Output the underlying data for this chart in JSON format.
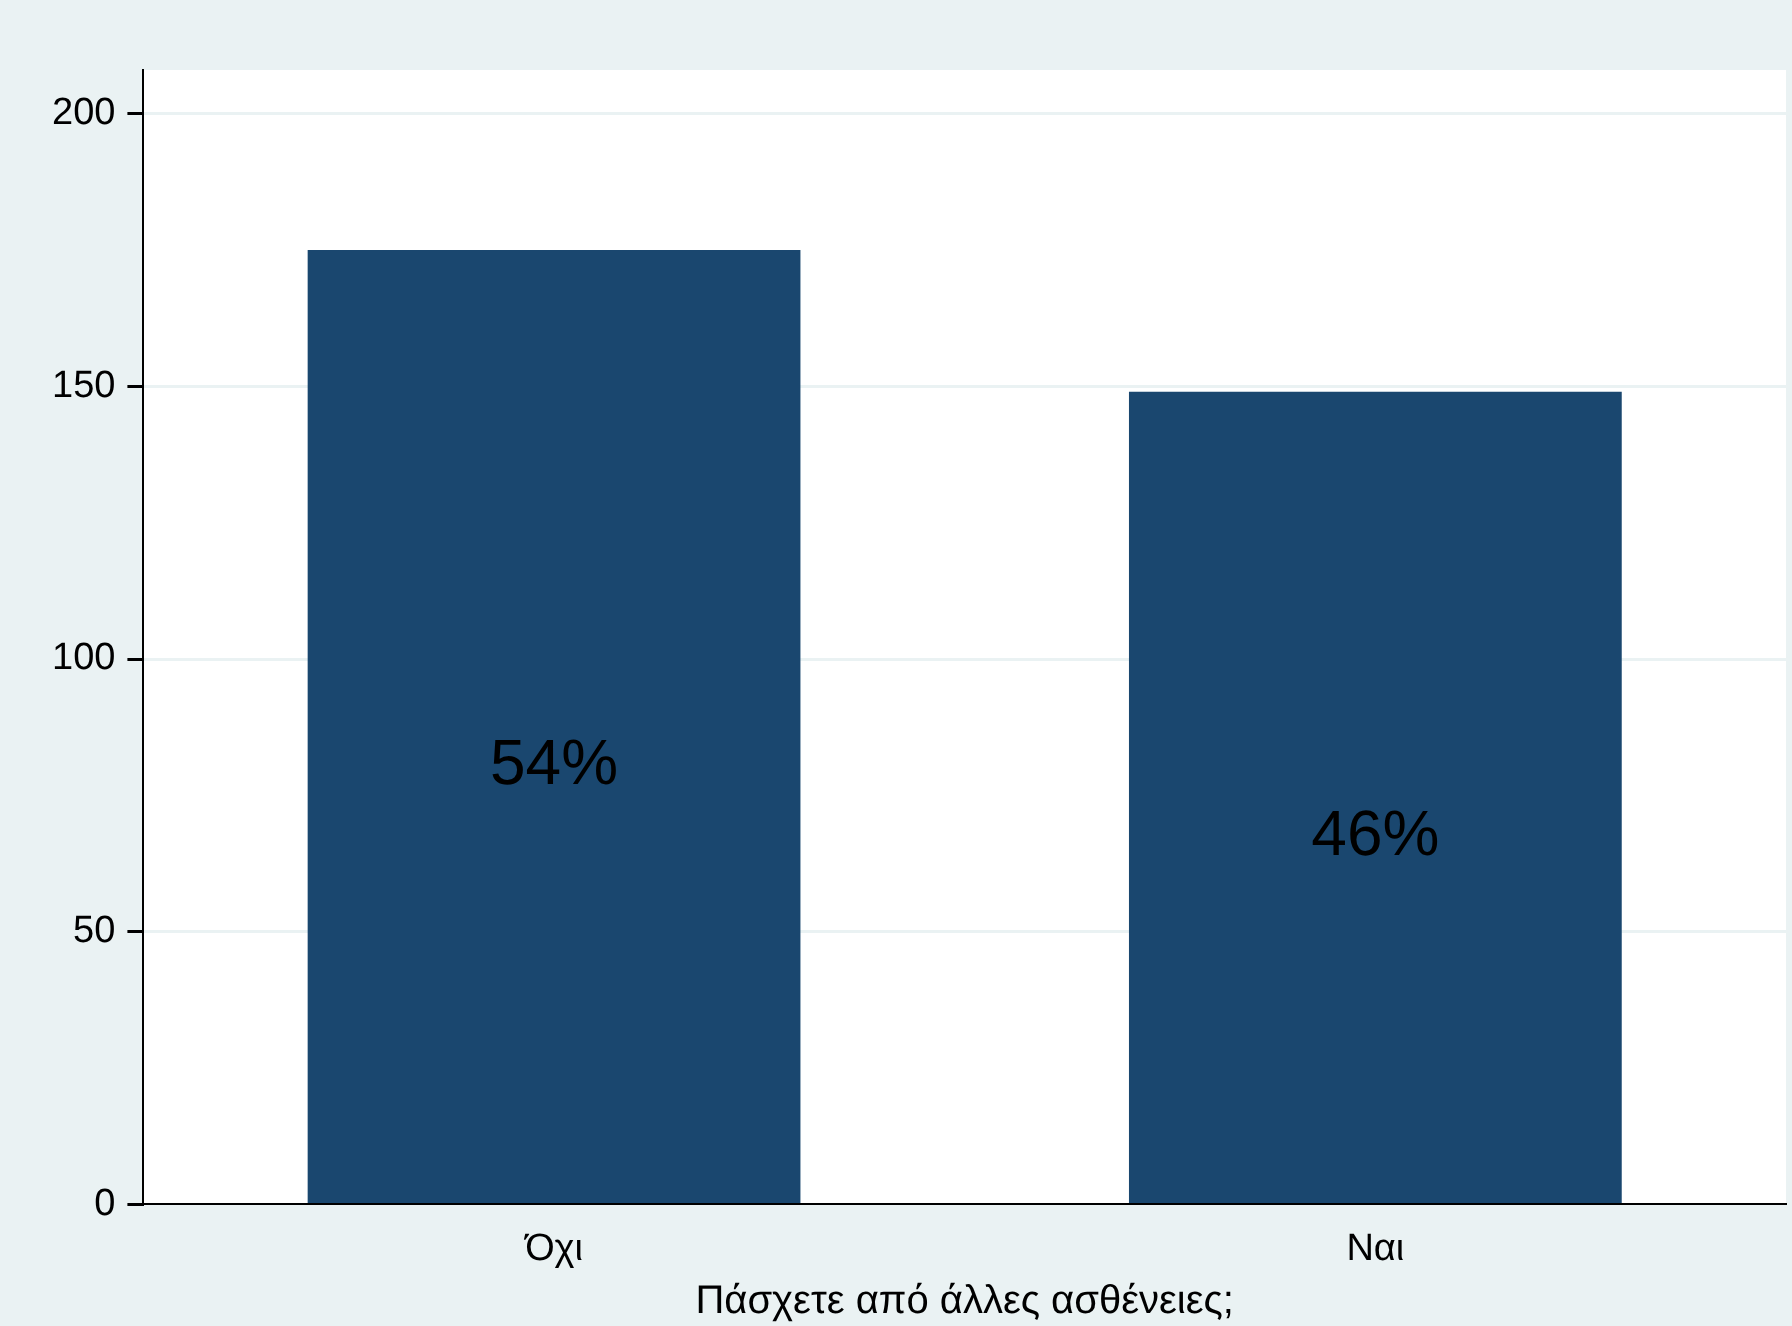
{
  "chart_data": {
    "type": "bar",
    "xlabel": "Πάσχετε από άλλες ασθένειες;",
    "categories": [
      "Όχι",
      "Ναι"
    ],
    "values": [
      175,
      149
    ],
    "annotations": [
      "54%",
      "46%"
    ],
    "color": "#1a476f",
    "ylim": [
      0,
      208
    ],
    "yticks": [
      0,
      50,
      100,
      150,
      200
    ],
    "grid": "y",
    "legend": false
  }
}
